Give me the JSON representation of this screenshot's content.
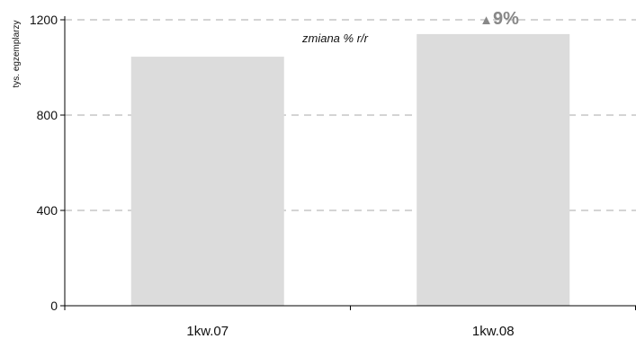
{
  "chart_data": {
    "type": "bar",
    "categories": [
      "1kw.07",
      "1kw.08"
    ],
    "values": [
      1045,
      1140
    ],
    "ylabel": "tys. egzemplarzy",
    "ylim": [
      0,
      1200
    ],
    "yticks": [
      0,
      400,
      800,
      1200
    ],
    "grid": true,
    "annotation": "zmiana % r/r",
    "change": {
      "arrow": "▲",
      "value": "9%",
      "direction": "up"
    }
  },
  "colors": {
    "bar": "#dcdcdc",
    "grid": "#aaaaaa",
    "axis": "#000000",
    "change": "#888888"
  }
}
